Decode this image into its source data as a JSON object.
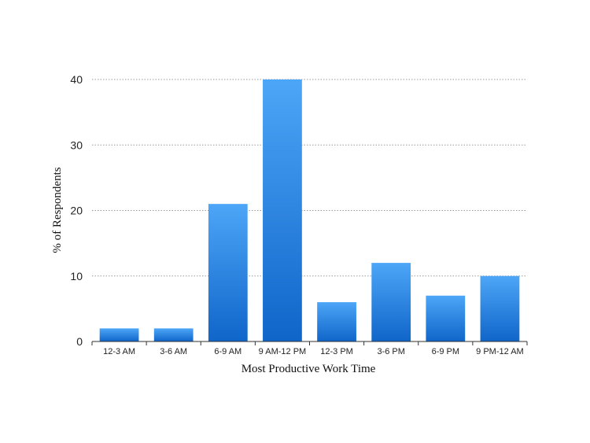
{
  "chart_data": {
    "type": "bar",
    "categories": [
      "12-3 AM",
      "3-6 AM",
      "6-9 AM",
      "9 AM-12 PM",
      "12-3 PM",
      "3-6 PM",
      "6-9 PM",
      "9 PM-12 AM"
    ],
    "values": [
      2,
      2,
      21,
      40,
      6,
      12,
      7,
      10
    ],
    "xlabel": "Most Productive Work Time",
    "ylabel": "% of Respondents",
    "ylim": [
      0,
      40
    ],
    "yticks": [
      0,
      10,
      20,
      30,
      40
    ],
    "grid": true,
    "bar_color_top": "#4da6f7",
    "bar_color_bottom": "#1065c9"
  }
}
